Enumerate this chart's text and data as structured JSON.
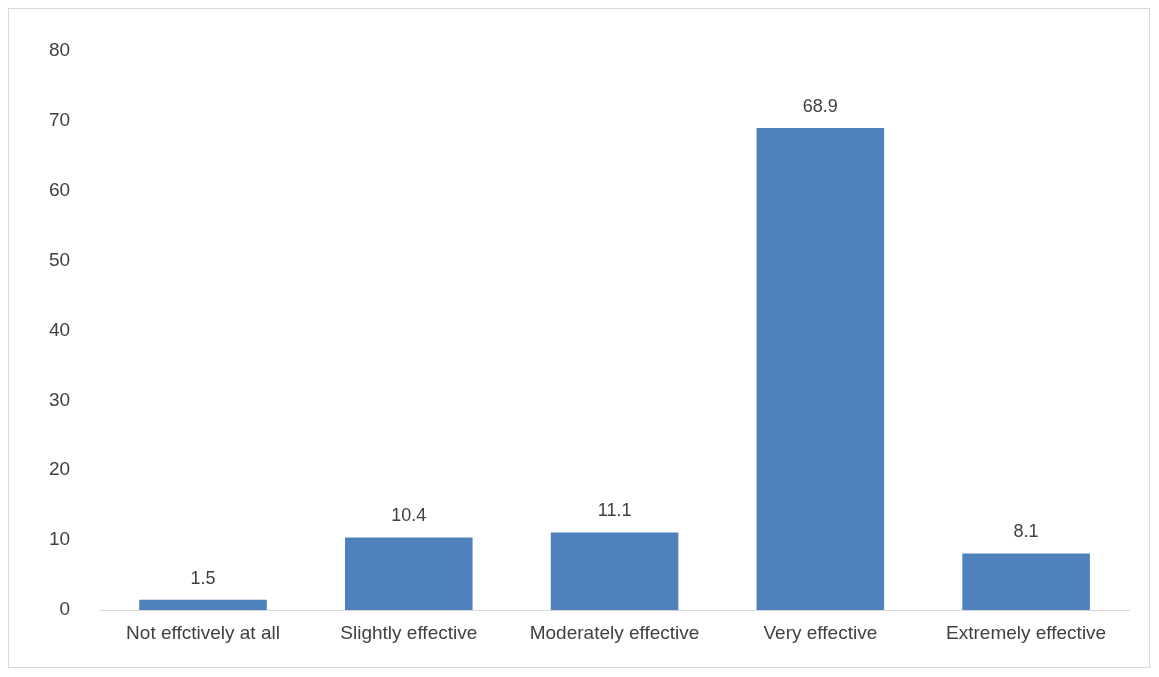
{
  "chart_data": {
    "type": "bar",
    "categories": [
      "Not effctively at all",
      "Slightly effective",
      "Moderately effective",
      "Very effective",
      "Extremely effective"
    ],
    "values": [
      1.5,
      10.4,
      11.1,
      68.9,
      8.1
    ],
    "color": "#4f81bd",
    "ylim": [
      0,
      80
    ],
    "yticks": [
      0,
      10,
      20,
      30,
      40,
      50,
      60,
      70,
      80
    ],
    "grid": false,
    "legend": false,
    "data_labels": true
  }
}
